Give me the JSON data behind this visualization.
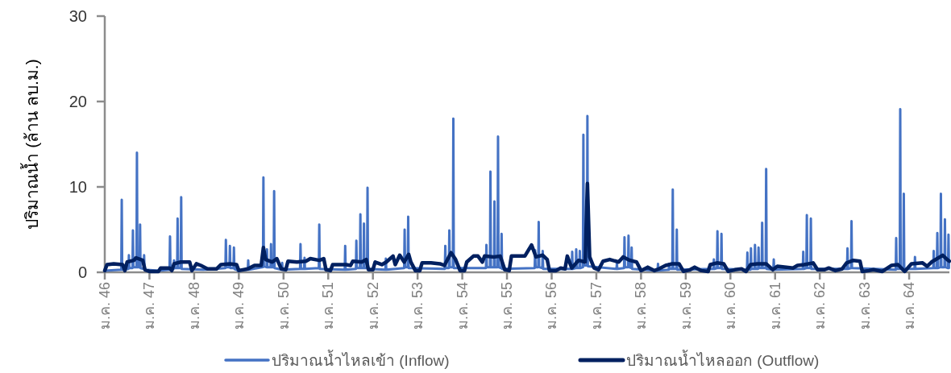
{
  "chart_data": {
    "type": "line",
    "ylabel": "ปริมาณน้ำ (ล้าน ลบ.ม.)",
    "xlim": [
      46,
      64.9
    ],
    "ylim": [
      0,
      30
    ],
    "yticks": [
      0,
      10,
      20,
      30
    ],
    "xticks": [
      {
        "value": 46,
        "label": "ม.ค. 46"
      },
      {
        "value": 47,
        "label": "ม.ค. 47"
      },
      {
        "value": 48,
        "label": "ม.ค. 48"
      },
      {
        "value": 49,
        "label": "ม.ค. 49"
      },
      {
        "value": 50,
        "label": "ม.ค. 50"
      },
      {
        "value": 51,
        "label": "ม.ค. 51"
      },
      {
        "value": 52,
        "label": "ม.ค. 52"
      },
      {
        "value": 53,
        "label": "ม.ค. 53"
      },
      {
        "value": 54,
        "label": "ม.ค. 54"
      },
      {
        "value": 55,
        "label": "ม.ค. 55"
      },
      {
        "value": 56,
        "label": "ม.ค. 56"
      },
      {
        "value": 57,
        "label": "ม.ค. 57"
      },
      {
        "value": 58,
        "label": "ม.ค. 58"
      },
      {
        "value": 59,
        "label": "ม.ค. 59"
      },
      {
        "value": 60,
        "label": "ม.ค. 60"
      },
      {
        "value": 61,
        "label": "ม.ค. 61"
      },
      {
        "value": 62,
        "label": "ม.ค. 62"
      },
      {
        "value": 63,
        "label": "ม.ค. 63"
      },
      {
        "value": 64,
        "label": "ม.ค. 64"
      }
    ],
    "grid": false,
    "legend": "bottom",
    "line_style": "solid",
    "series": [
      {
        "name": "ปริมาณน้ำไหลเข้า (Inflow)",
        "color": "#4472c4",
        "x": [
          46.0,
          46.37,
          46.38,
          46.39,
          46.53,
          46.54,
          46.55,
          46.62,
          46.63,
          46.64,
          46.71,
          46.72,
          46.73,
          46.78,
          46.79,
          46.8,
          46.87,
          46.88,
          46.89,
          47.2,
          47.45,
          47.46,
          47.47,
          47.54,
          47.55,
          47.56,
          47.62,
          47.63,
          47.64,
          47.7,
          47.71,
          47.72,
          48.2,
          48.7,
          48.71,
          48.72,
          48.79,
          48.8,
          48.81,
          48.88,
          48.89,
          48.9,
          48.95,
          48.96,
          48.97,
          49.2,
          49.21,
          49.22,
          49.54,
          49.55,
          49.56,
          49.62,
          49.63,
          49.64,
          49.71,
          49.72,
          49.73,
          49.78,
          49.79,
          49.8,
          49.96,
          49.97,
          49.98,
          50.37,
          50.38,
          50.39,
          50.46,
          50.47,
          50.48,
          50.79,
          50.8,
          50.81,
          51.37,
          51.38,
          51.39,
          51.62,
          51.63,
          51.64,
          51.71,
          51.72,
          51.73,
          51.79,
          51.8,
          51.81,
          51.87,
          51.88,
          51.89,
          52.28,
          52.29,
          52.3,
          52.7,
          52.71,
          52.72,
          52.78,
          52.79,
          52.8,
          53.61,
          53.62,
          53.63,
          53.7,
          53.71,
          53.72,
          53.79,
          53.8,
          53.81,
          54.53,
          54.54,
          54.55,
          54.62,
          54.63,
          54.64,
          54.71,
          54.72,
          54.73,
          54.79,
          54.8,
          54.81,
          54.87,
          54.88,
          54.89,
          55.62,
          55.63,
          55.64,
          55.7,
          55.71,
          55.72,
          55.79,
          55.8,
          55.81,
          56.45,
          56.46,
          56.47,
          56.54,
          56.55,
          56.56,
          56.62,
          56.63,
          56.64,
          56.7,
          56.71,
          56.72,
          56.79,
          56.8,
          56.81,
          57.45,
          57.46,
          57.47,
          57.62,
          57.63,
          57.64,
          57.71,
          57.72,
          57.73,
          57.78,
          57.79,
          57.8,
          58.37,
          58.38,
          58.39,
          58.62,
          58.63,
          58.64,
          58.7,
          58.71,
          58.72,
          58.79,
          58.8,
          58.81,
          59.62,
          59.63,
          59.64,
          59.7,
          59.71,
          59.72,
          59.79,
          59.8,
          59.81,
          60.37,
          60.38,
          60.39,
          60.45,
          60.46,
          60.47,
          60.54,
          60.55,
          60.56,
          60.62,
          60.63,
          60.64,
          60.7,
          60.71,
          60.72,
          60.79,
          60.8,
          60.81,
          60.96,
          60.97,
          60.98,
          61.62,
          61.63,
          61.64,
          61.7,
          61.71,
          61.72,
          61.79,
          61.8,
          61.81,
          62.61,
          62.62,
          62.63,
          62.7,
          62.71,
          62.72,
          63.7,
          63.71,
          63.72,
          63.79,
          63.8,
          63.81,
          63.87,
          63.88,
          63.89,
          64.12,
          64.13,
          64.14,
          64.54,
          64.55,
          64.56,
          64.62,
          64.63,
          64.64,
          64.7,
          64.71,
          64.72,
          64.79,
          64.8,
          64.81,
          64.87,
          64.88,
          64.89
        ],
        "values": [
          0.2,
          0.3,
          8.5,
          0.3,
          0.4,
          2.0,
          0.5,
          0.5,
          4.9,
          0.6,
          0.6,
          14.0,
          0.6,
          0.6,
          5.6,
          0.5,
          0.4,
          2.0,
          0.3,
          0.2,
          0.3,
          4.2,
          0.3,
          0.4,
          1.4,
          0.5,
          0.5,
          6.3,
          0.5,
          0.5,
          8.8,
          0.4,
          0.3,
          0.5,
          3.8,
          0.6,
          0.6,
          3.1,
          0.5,
          0.5,
          2.9,
          0.4,
          0.3,
          0.9,
          0.2,
          0.3,
          1.4,
          0.3,
          0.6,
          11.1,
          0.7,
          0.6,
          2.7,
          0.6,
          0.6,
          3.3,
          0.6,
          0.6,
          9.5,
          0.5,
          0.3,
          1.1,
          0.3,
          0.4,
          3.3,
          0.4,
          0.4,
          1.7,
          0.4,
          0.5,
          5.6,
          0.4,
          0.3,
          3.1,
          0.3,
          0.4,
          3.7,
          0.5,
          0.5,
          6.8,
          0.5,
          0.5,
          5.7,
          0.5,
          0.5,
          9.9,
          0.4,
          0.3,
          1.6,
          0.3,
          0.5,
          5.0,
          0.6,
          0.6,
          6.5,
          0.5,
          0.4,
          3.1,
          0.5,
          0.5,
          4.9,
          0.6,
          0.6,
          18.0,
          0.5,
          0.5,
          3.2,
          0.6,
          0.6,
          11.8,
          0.6,
          0.6,
          8.3,
          0.6,
          0.6,
          15.9,
          0.6,
          0.5,
          4.5,
          0.4,
          0.5,
          2.6,
          0.6,
          0.6,
          5.9,
          0.6,
          0.5,
          2.5,
          0.4,
          0.4,
          2.4,
          0.4,
          0.5,
          2.7,
          0.5,
          0.5,
          2.5,
          0.5,
          0.6,
          16.1,
          0.8,
          0.8,
          18.3,
          0.7,
          0.4,
          1.0,
          0.4,
          0.5,
          4.1,
          0.6,
          0.6,
          4.3,
          0.6,
          0.5,
          2.9,
          0.4,
          0.2,
          1.0,
          0.2,
          0.3,
          1.0,
          0.4,
          0.4,
          9.7,
          0.4,
          0.4,
          5.0,
          0.3,
          0.4,
          1.5,
          0.4,
          0.5,
          4.8,
          0.5,
          0.5,
          4.5,
          0.4,
          0.3,
          2.3,
          0.3,
          0.3,
          2.8,
          0.4,
          0.4,
          3.2,
          0.4,
          0.4,
          2.9,
          0.5,
          0.5,
          5.8,
          0.5,
          0.5,
          12.1,
          0.4,
          0.3,
          1.5,
          0.3,
          0.4,
          2.4,
          0.4,
          0.5,
          6.7,
          0.5,
          0.5,
          6.3,
          0.4,
          0.4,
          2.8,
          0.4,
          0.5,
          6.0,
          0.5,
          0.3,
          4.0,
          0.4,
          0.4,
          19.1,
          0.4,
          0.4,
          9.2,
          0.4,
          0.4,
          1.8,
          0.4,
          0.5,
          2.5,
          0.5,
          0.5,
          4.6,
          0.5,
          0.6,
          9.2,
          0.6,
          0.6,
          6.2,
          0.6,
          0.5,
          4.4,
          0.5
        ]
      },
      {
        "name": "ปริมาณน้ำไหลออก (Outflow)",
        "color": "#002060",
        "x": [
          46.0,
          46.05,
          46.2,
          46.4,
          46.45,
          46.5,
          46.65,
          46.7,
          46.85,
          46.9,
          47.0,
          47.2,
          47.25,
          47.45,
          47.5,
          47.55,
          47.7,
          47.9,
          47.95,
          48.05,
          48.15,
          48.3,
          48.5,
          48.6,
          48.8,
          48.95,
          49.0,
          49.2,
          49.35,
          49.5,
          49.55,
          49.6,
          49.75,
          49.85,
          49.95,
          50.05,
          50.1,
          50.3,
          50.5,
          50.6,
          50.8,
          50.9,
          50.95,
          51.05,
          51.1,
          51.4,
          51.5,
          51.55,
          51.75,
          51.85,
          51.9,
          52.0,
          52.05,
          52.2,
          52.3,
          52.45,
          52.5,
          52.6,
          52.7,
          52.8,
          52.85,
          52.95,
          53.05,
          53.1,
          53.3,
          53.5,
          53.6,
          53.75,
          53.85,
          53.95,
          54.05,
          54.1,
          54.25,
          54.35,
          54.45,
          54.5,
          54.7,
          54.85,
          54.95,
          55.05,
          55.1,
          55.4,
          55.55,
          55.65,
          55.8,
          55.9,
          55.95,
          56.1,
          56.2,
          56.3,
          56.35,
          56.45,
          56.6,
          56.75,
          56.8,
          56.85,
          56.95,
          57.05,
          57.15,
          57.3,
          57.5,
          57.6,
          57.75,
          57.9,
          58.0,
          58.15,
          58.3,
          58.4,
          58.55,
          58.7,
          58.85,
          58.95,
          59.1,
          59.2,
          59.35,
          59.5,
          59.55,
          59.7,
          59.85,
          59.95,
          60.1,
          60.25,
          60.35,
          60.45,
          60.6,
          60.8,
          60.95,
          61.05,
          61.25,
          61.4,
          61.5,
          61.65,
          61.85,
          61.95,
          62.1,
          62.2,
          62.35,
          62.5,
          62.6,
          62.75,
          62.9,
          62.95,
          63.1,
          63.2,
          63.4,
          63.6,
          63.75,
          63.9,
          64.05,
          64.3,
          64.4,
          64.5,
          64.75,
          64.85,
          64.9
        ],
        "values": [
          0.2,
          0.9,
          1.0,
          0.9,
          0.2,
          1.2,
          1.4,
          1.7,
          1.4,
          0.3,
          0.1,
          0.1,
          0.5,
          0.5,
          0.2,
          1.0,
          1.2,
          1.2,
          0.2,
          1.0,
          0.8,
          0.4,
          0.4,
          0.9,
          1.0,
          0.9,
          0.2,
          0.4,
          0.8,
          0.8,
          2.9,
          1.5,
          1.2,
          1.6,
          0.4,
          0.3,
          1.3,
          1.2,
          1.3,
          1.6,
          1.4,
          1.6,
          0.3,
          0.2,
          0.9,
          0.9,
          0.8,
          1.3,
          1.2,
          1.5,
          0.3,
          0.3,
          1.2,
          0.9,
          1.2,
          1.9,
          0.9,
          2.0,
          1.2,
          2.1,
          1.2,
          0.2,
          0.2,
          1.1,
          1.1,
          1.0,
          0.8,
          2.3,
          1.5,
          0.2,
          0.2,
          1.2,
          1.9,
          1.9,
          1.2,
          1.9,
          1.8,
          1.9,
          0.3,
          0.2,
          1.9,
          1.9,
          3.2,
          1.8,
          2.0,
          1.5,
          0.2,
          0.2,
          0.5,
          0.4,
          1.9,
          0.5,
          1.4,
          1.2,
          10.4,
          1.8,
          0.5,
          0.3,
          1.3,
          1.5,
          1.2,
          1.8,
          1.4,
          1.2,
          0.2,
          0.6,
          0.2,
          0.4,
          0.8,
          1.0,
          1.0,
          0.1,
          0.3,
          0.6,
          0.2,
          0.1,
          0.9,
          1.1,
          1.0,
          0.1,
          0.3,
          0.4,
          0.1,
          0.9,
          1.0,
          1.0,
          0.3,
          0.7,
          0.6,
          0.5,
          0.8,
          0.9,
          1.1,
          0.3,
          0.3,
          0.5,
          0.2,
          0.4,
          1.1,
          1.4,
          1.3,
          0.1,
          0.2,
          0.3,
          0.1,
          0.8,
          0.9,
          0.1,
          1.0,
          1.1,
          0.7,
          1.2,
          2.0,
          1.5,
          1.3
        ]
      }
    ]
  }
}
